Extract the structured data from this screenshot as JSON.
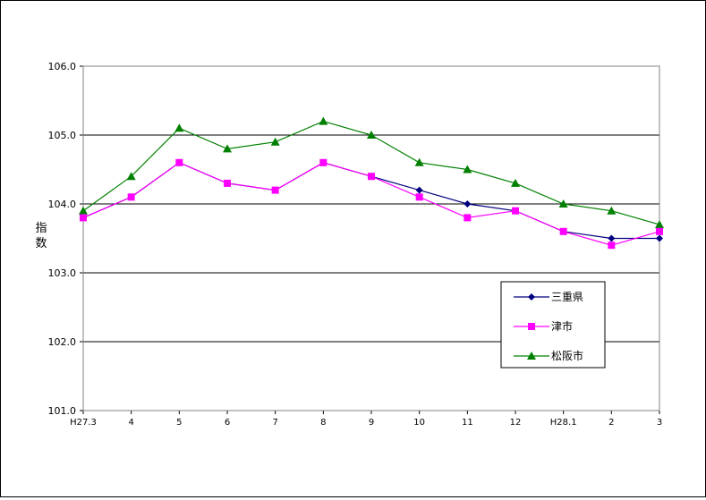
{
  "chart_data": {
    "type": "line",
    "ylabel": "指数",
    "xlabel": "",
    "title": "",
    "categories": [
      "H27.3",
      "4",
      "5",
      "6",
      "7",
      "8",
      "9",
      "10",
      "11",
      "12",
      "H28.1",
      "2",
      "3"
    ],
    "ylim": [
      101.0,
      106.0
    ],
    "yticks": [
      "101.0",
      "102.0",
      "103.0",
      "104.0",
      "105.0",
      "106.0"
    ],
    "grid": true,
    "legend_position": "bottom-right",
    "series": [
      {
        "name": "三重県",
        "color": "#000080",
        "marker": "diamond",
        "values": [
          103.8,
          104.1,
          104.6,
          104.3,
          104.2,
          104.6,
          104.4,
          104.2,
          104.0,
          103.9,
          103.6,
          103.5,
          103.5
        ]
      },
      {
        "name": "津市",
        "color": "#ff00ff",
        "marker": "square",
        "values": [
          103.8,
          104.1,
          104.6,
          104.3,
          104.2,
          104.6,
          104.4,
          104.1,
          103.8,
          103.9,
          103.6,
          103.4,
          103.6
        ]
      },
      {
        "name": "松阪市",
        "color": "#008000",
        "marker": "triangle",
        "values": [
          103.9,
          104.4,
          105.1,
          104.8,
          104.9,
          105.2,
          105.0,
          104.6,
          104.5,
          104.3,
          104.0,
          103.9,
          103.7
        ]
      }
    ]
  }
}
